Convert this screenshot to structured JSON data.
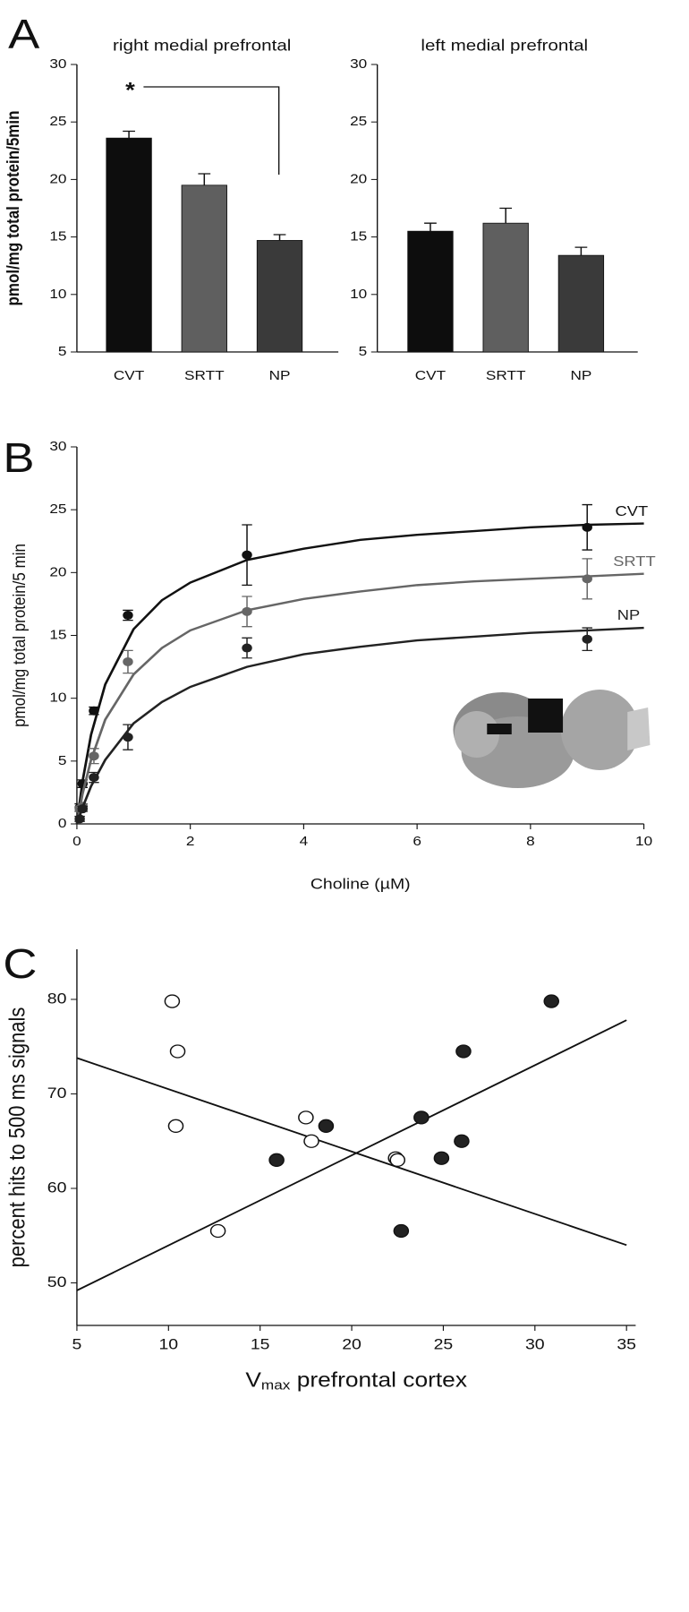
{
  "chart_data": [
    {
      "type": "bar",
      "panel": "A",
      "title": "right medial prefrontal",
      "ylabel": "pmol/mg total protein/5min",
      "annotation": "*",
      "categories": [
        "CVT",
        "SRTT",
        "NP"
      ],
      "values": [
        23.6,
        19.5,
        14.7
      ],
      "errors": [
        0.6,
        1.0,
        0.5
      ],
      "colors": [
        "#0d0d0d",
        "#5f5f5f",
        "#3a3a3a"
      ],
      "ylim": [
        5,
        30
      ],
      "yticks": [
        5,
        10,
        15,
        20,
        25,
        30
      ]
    },
    {
      "type": "bar",
      "title": "left medial prefrontal",
      "categories": [
        "CVT",
        "SRTT",
        "NP"
      ],
      "values": [
        15.5,
        16.2,
        13.4
      ],
      "errors": [
        0.7,
        1.3,
        0.7
      ],
      "colors": [
        "#0d0d0d",
        "#5f5f5f",
        "#3a3a3a"
      ],
      "ylim": [
        5,
        30
      ],
      "yticks": [
        5,
        10,
        15,
        20,
        25,
        30
      ]
    },
    {
      "type": "line",
      "panel": "B",
      "ylabel": "pmol/mg total protein/5 min",
      "xlabel": "Choline (µM)",
      "x": [
        0.05,
        0.1,
        0.3,
        0.9,
        3,
        9
      ],
      "fit_x": [
        0,
        0.1,
        0.25,
        0.5,
        1,
        1.5,
        2,
        3,
        4,
        5,
        6,
        7,
        8,
        9,
        10
      ],
      "series": [
        {
          "name": "CVT",
          "color": "#111111",
          "values": [
            1.3,
            3.2,
            9.0,
            16.6,
            21.4,
            23.6
          ],
          "errors": [
            0.3,
            0.3,
            0.3,
            0.4,
            2.4,
            1.8
          ],
          "fit": [
            0,
            3.4,
            7.1,
            11.1,
            15.5,
            17.8,
            19.2,
            21.0,
            21.9,
            22.6,
            23.0,
            23.3,
            23.6,
            23.8,
            23.9
          ]
        },
        {
          "name": "SRTT",
          "color": "#666666",
          "values": [
            1.2,
            1.4,
            5.4,
            12.9,
            16.9,
            19.5
          ],
          "errors": [
            0.2,
            0.2,
            0.6,
            0.9,
            1.2,
            1.6
          ],
          "fit": [
            0,
            2.4,
            5.1,
            8.3,
            11.9,
            14.0,
            15.4,
            17.0,
            17.9,
            18.5,
            19.0,
            19.3,
            19.5,
            19.7,
            19.9
          ]
        },
        {
          "name": "NP",
          "color": "#222222",
          "values": [
            0.4,
            1.2,
            3.7,
            6.9,
            14.0,
            14.7
          ],
          "errors": [
            0.2,
            0.2,
            0.4,
            1.0,
            0.8,
            0.9
          ],
          "fit": [
            0,
            1.3,
            3.0,
            5.1,
            8.0,
            9.7,
            10.9,
            12.5,
            13.5,
            14.1,
            14.6,
            14.9,
            15.2,
            15.4,
            15.6
          ]
        }
      ],
      "xlim": [
        0,
        10
      ],
      "xticks": [
        0,
        2,
        4,
        6,
        8,
        10
      ],
      "ylim": [
        0,
        30
      ],
      "yticks": [
        0,
        5,
        10,
        15,
        20,
        25,
        30
      ]
    },
    {
      "type": "scatter",
      "panel": "C",
      "ylabel": "percent hits to 500 ms signals",
      "xlabel": [
        "V",
        "max",
        " prefrontal cortex"
      ],
      "series": [
        {
          "color": "#222222",
          "x": [
            15.9,
            18.6,
            22.7,
            23.8,
            24.9,
            26.0,
            26.1,
            30.9
          ],
          "values": [
            63.0,
            66.6,
            55.5,
            67.5,
            63.2,
            65.0,
            74.5,
            79.8
          ]
        },
        {
          "color": "#ffffff",
          "x": [
            10.2,
            10.5,
            10.4,
            12.7,
            17.5,
            17.8,
            22.4,
            22.5
          ],
          "values": [
            79.8,
            74.5,
            66.6,
            55.5,
            67.5,
            65.0,
            63.2,
            63.0
          ]
        }
      ],
      "fit_lines": [
        {
          "x": [
            5,
            35
          ],
          "values": [
            49.2,
            77.8
          ]
        },
        {
          "x": [
            5,
            35
          ],
          "values": [
            73.8,
            54.0
          ]
        }
      ],
      "xlim": [
        5,
        35.5
      ],
      "xticks": [
        5,
        10,
        15,
        20,
        25,
        30,
        35
      ],
      "ylim": [
        45.5,
        85.3
      ],
      "yticks": [
        50,
        60,
        70,
        80
      ]
    }
  ]
}
